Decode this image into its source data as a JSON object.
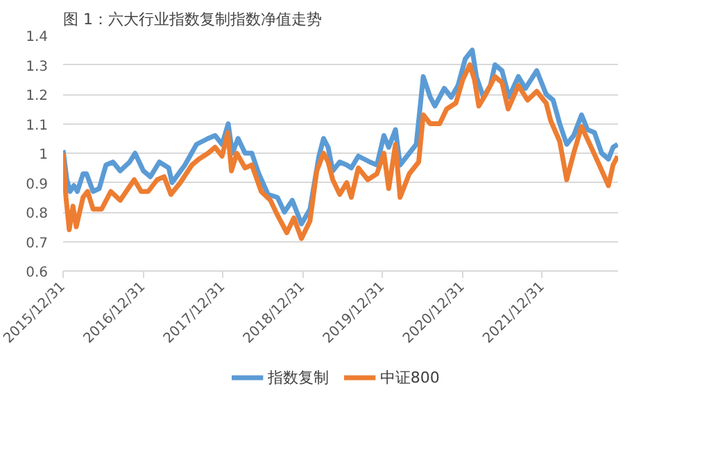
{
  "chart_data": {
    "type": "line",
    "title": "图 1：六大行业指数复制指数净值走势",
    "xlim": [
      "2015-12-31",
      "2022-12-12"
    ],
    "xticks": [
      {
        "value": "2015-12-31",
        "label": "2015/12/31"
      },
      {
        "value": "2016-12-31",
        "label": "2016/12/31"
      },
      {
        "value": "2017-12-31",
        "label": "2017/12/31"
      },
      {
        "value": "2018-12-31",
        "label": "2018/12/31"
      },
      {
        "value": "2019-12-31",
        "label": "2019/12/31"
      },
      {
        "value": "2020-12-31",
        "label": "2020/12/31"
      },
      {
        "value": "2021-12-31",
        "label": "2021/12/31"
      }
    ],
    "ylim": [
      0.6,
      1.4
    ],
    "yticks": [
      0.6,
      0.7,
      0.8,
      0.9,
      1,
      1.1,
      1.2,
      1.3,
      1.4
    ],
    "grid": "y",
    "legend": "bottom",
    "line_style": "solid",
    "marker": "none",
    "series": [
      {
        "name": "指数复制",
        "color": "#5b9bd5",
        "x": [
          "2015-12-31",
          "2016-01-17",
          "2016-02-01",
          "2016-02-18",
          "2016-03-05",
          "2016-03-31",
          "2016-04-16",
          "2016-05-16",
          "2016-06-13",
          "2016-07-14",
          "2016-08-15",
          "2016-09-17",
          "2016-10-30",
          "2016-11-24",
          "2017-01-01",
          "2017-02-02",
          "2017-03-15",
          "2017-04-27",
          "2017-05-12",
          "2017-07-10",
          "2017-09-01",
          "2017-10-24",
          "2017-11-25",
          "2017-12-27",
          "2018-01-24",
          "2018-02-12",
          "2018-03-10",
          "2018-04-11",
          "2018-05-12",
          "2018-06-13",
          "2018-07-25",
          "2018-09-06",
          "2018-10-08",
          "2018-11-13",
          "2018-12-25",
          "2019-02-02",
          "2019-03-15",
          "2019-04-05",
          "2019-04-26",
          "2019-05-17",
          "2019-06-18",
          "2019-07-20",
          "2019-08-10",
          "2019-09-11",
          "2019-11-03",
          "2019-12-05",
          "2020-01-06",
          "2020-01-28",
          "2020-02-28",
          "2020-03-20",
          "2020-05-01",
          "2020-06-02",
          "2020-07-04",
          "2020-08-05",
          "2020-08-26",
          "2020-10-08",
          "2020-11-09",
          "2020-12-10",
          "2021-01-12",
          "2021-02-13",
          "2021-03-04",
          "2021-04-05",
          "2021-05-07",
          "2021-05-28",
          "2021-06-29",
          "2021-07-31",
          "2021-09-12",
          "2021-10-14",
          "2021-12-05",
          "2022-01-17",
          "2022-02-18",
          "2022-03-20",
          "2022-04-21",
          "2022-05-23",
          "2022-06-28",
          "2022-07-25",
          "2022-08-26",
          "2022-09-28",
          "2022-10-29",
          "2022-11-19",
          "2022-12-10"
        ],
        "values": [
          1.01,
          0.91,
          0.87,
          0.89,
          0.87,
          0.93,
          0.93,
          0.87,
          0.88,
          0.96,
          0.97,
          0.94,
          0.97,
          1.0,
          0.94,
          0.92,
          0.97,
          0.95,
          0.9,
          0.96,
          1.03,
          1.05,
          1.06,
          1.03,
          1.1,
          1.0,
          1.05,
          1.0,
          1.0,
          0.93,
          0.86,
          0.85,
          0.8,
          0.84,
          0.76,
          0.81,
          0.99,
          1.05,
          1.02,
          0.94,
          0.97,
          0.96,
          0.95,
          0.99,
          0.97,
          0.96,
          1.06,
          1.02,
          1.08,
          0.96,
          1.0,
          1.03,
          1.26,
          1.19,
          1.16,
          1.22,
          1.19,
          1.23,
          1.32,
          1.35,
          1.26,
          1.19,
          1.23,
          1.3,
          1.28,
          1.19,
          1.26,
          1.22,
          1.28,
          1.2,
          1.18,
          1.1,
          1.03,
          1.06,
          1.13,
          1.08,
          1.07,
          1.0,
          0.98,
          1.02,
          1.03
        ]
      },
      {
        "name": "中证800",
        "color": "#ed7d31",
        "x": [
          "2015-12-31",
          "2016-01-13",
          "2016-01-28",
          "2016-02-14",
          "2016-02-29",
          "2016-03-31",
          "2016-04-21",
          "2016-05-16",
          "2016-06-24",
          "2016-08-05",
          "2016-09-17",
          "2016-11-20",
          "2016-12-22",
          "2017-01-23",
          "2017-03-05",
          "2017-04-06",
          "2017-05-07",
          "2017-06-19",
          "2017-08-11",
          "2017-09-12",
          "2017-10-24",
          "2017-11-25",
          "2017-12-27",
          "2018-01-22",
          "2018-02-08",
          "2018-03-04",
          "2018-04-11",
          "2018-05-12",
          "2018-06-24",
          "2018-08-05",
          "2018-09-06",
          "2018-10-19",
          "2018-11-20",
          "2018-12-25",
          "2019-02-02",
          "2019-03-05",
          "2019-04-05",
          "2019-04-26",
          "2019-05-17",
          "2019-06-18",
          "2019-07-20",
          "2019-08-10",
          "2019-09-11",
          "2019-10-24",
          "2019-12-05",
          "2020-01-06",
          "2020-01-28",
          "2020-02-28",
          "2020-03-20",
          "2020-05-01",
          "2020-06-13",
          "2020-07-04",
          "2020-08-05",
          "2020-09-17",
          "2020-10-19",
          "2020-11-30",
          "2021-01-01",
          "2021-02-02",
          "2021-02-23",
          "2021-03-15",
          "2021-04-16",
          "2021-05-28",
          "2021-06-29",
          "2021-07-27",
          "2021-09-12",
          "2021-10-24",
          "2021-12-05",
          "2022-01-17",
          "2022-02-07",
          "2022-03-20",
          "2022-04-21",
          "2022-05-23",
          "2022-06-28",
          "2022-08-05",
          "2022-09-17",
          "2022-10-29",
          "2022-11-19",
          "2022-12-10"
        ],
        "values": [
          1.0,
          0.85,
          0.74,
          0.82,
          0.75,
          0.85,
          0.87,
          0.81,
          0.81,
          0.87,
          0.84,
          0.91,
          0.87,
          0.87,
          0.91,
          0.92,
          0.86,
          0.9,
          0.96,
          0.98,
          1.0,
          1.02,
          0.99,
          1.07,
          0.94,
          1.0,
          0.95,
          0.96,
          0.87,
          0.84,
          0.79,
          0.73,
          0.78,
          0.71,
          0.77,
          0.94,
          1.0,
          0.97,
          0.91,
          0.86,
          0.9,
          0.85,
          0.95,
          0.91,
          0.93,
          1.0,
          0.88,
          1.03,
          0.85,
          0.93,
          0.97,
          1.13,
          1.1,
          1.1,
          1.15,
          1.17,
          1.25,
          1.3,
          1.25,
          1.16,
          1.2,
          1.26,
          1.24,
          1.15,
          1.23,
          1.18,
          1.21,
          1.17,
          1.11,
          1.04,
          0.91,
          1.0,
          1.09,
          1.03,
          0.96,
          0.89,
          0.96,
          0.99
        ]
      }
    ]
  }
}
